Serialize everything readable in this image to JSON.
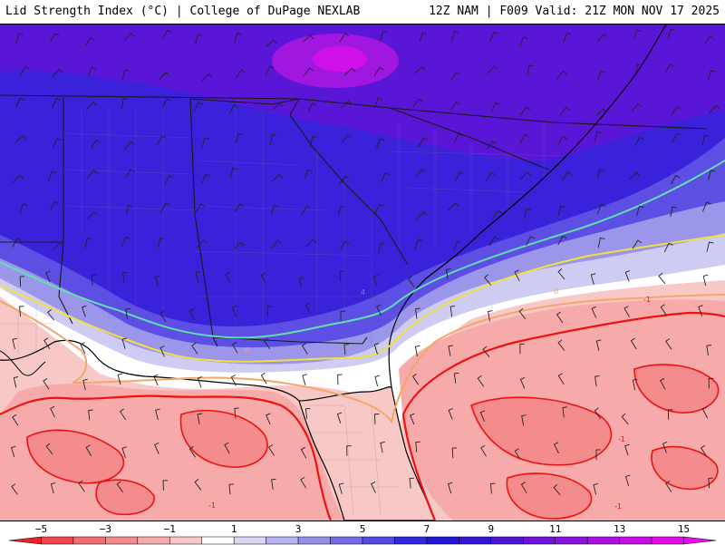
{
  "header": {
    "title_left": "Lid Strength Index (°C) | College of DuPage NEXLAB",
    "title_right": "12Z NAM | F009 Valid: 21Z MON NOV 17 2025"
  },
  "colorbar": {
    "tick_labels": [
      "−5",
      "−3",
      "−1",
      "1",
      "3",
      "5",
      "7",
      "9",
      "11",
      "13",
      "15"
    ],
    "bins": [
      {
        "range": "-6..-5",
        "color": "#f21e2a"
      },
      {
        "range": "-5..-4",
        "color": "#f2474f"
      },
      {
        "range": "-4..-3",
        "color": "#f26c70"
      },
      {
        "range": "-3..-2",
        "color": "#f48c8d"
      },
      {
        "range": "-2..-1",
        "color": "#f6abaa"
      },
      {
        "range": "-1..0",
        "color": "#f8c8c6"
      },
      {
        "range": "0..1",
        "color": "#ffffff"
      },
      {
        "range": "1..2",
        "color": "#d8d6f2"
      },
      {
        "range": "2..3",
        "color": "#b6b3ee"
      },
      {
        "range": "3..4",
        "color": "#9490ea"
      },
      {
        "range": "4..5",
        "color": "#726de6"
      },
      {
        "range": "5..6",
        "color": "#514ae2"
      },
      {
        "range": "6..7",
        "color": "#3028de"
      },
      {
        "range": "7..8",
        "color": "#2218d8"
      },
      {
        "range": "8..9",
        "color": "#3416d6"
      },
      {
        "range": "9..10",
        "color": "#5014d8"
      },
      {
        "range": "10..11",
        "color": "#6e12dc"
      },
      {
        "range": "11..12",
        "color": "#8c10e0"
      },
      {
        "range": "12..13",
        "color": "#aa0ee4"
      },
      {
        "range": "13..14",
        "color": "#c80ce8"
      },
      {
        "range": "14..15",
        "color": "#e40aec"
      },
      {
        "range": "15..16",
        "color": "#f008f0"
      }
    ]
  },
  "contours": {
    "label_minus1": "-1",
    "label_0": "0",
    "label_2": "2",
    "label_4": "4",
    "colors": {
      "minus1": "#ee1111",
      "zero": "#f3a66a",
      "two": "#f0e040",
      "four": "#5fe0b0"
    }
  },
  "map": {
    "colors": {
      "deep_purple": "#5a16d6",
      "magenta_core": "#c020e4",
      "blue_main": "#3a22da",
      "blue_mid": "#5d4ee4",
      "blue_light": "#9b96ea",
      "blue_pale": "#cfccf3",
      "white_zone": "#ffffff",
      "pink_light": "#f8c8c6",
      "pink_mid": "#f6abaa",
      "coast": "#000000",
      "state_border": "#1a1a1a",
      "county_border": "#7a7a7a",
      "wind_barb": "#222222"
    }
  }
}
